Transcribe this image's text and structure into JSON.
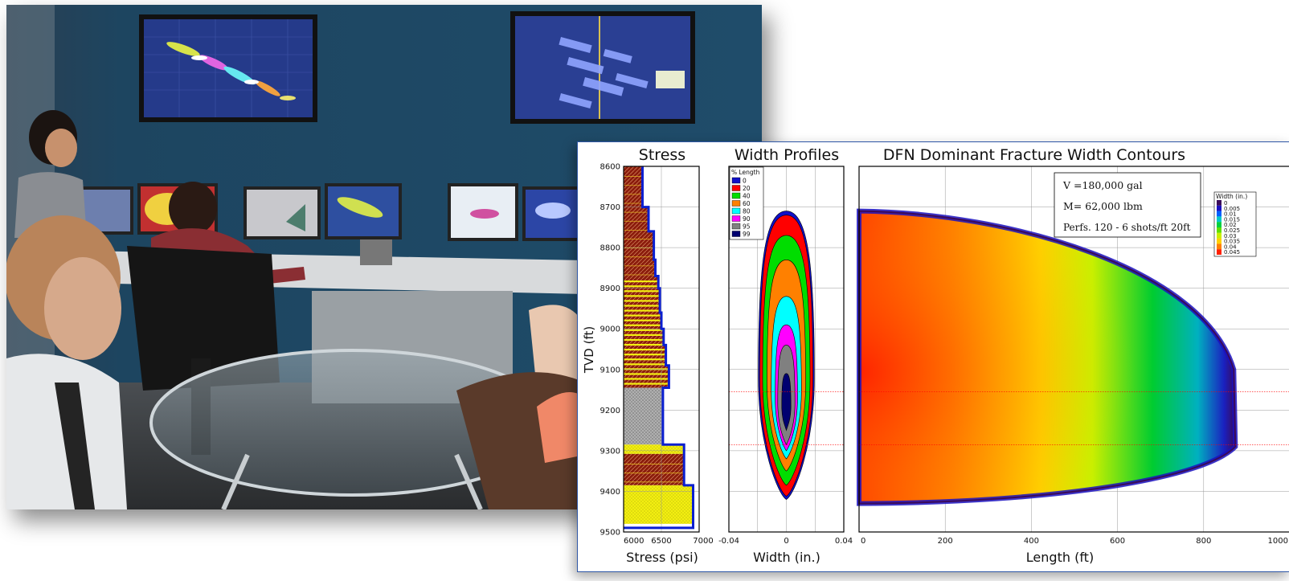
{
  "photo": {
    "title": ""
  },
  "colors": {
    "wall": "#1f4a66",
    "chart_border": "#2f57a6",
    "stress_line": "#0a1fd0",
    "shale_fill": "#8b1c0c",
    "sand_fill": "#f3ef11",
    "silt_fill": "#9a9a9a",
    "perf_line": "#ff0000"
  },
  "chart_data": [
    {
      "type": "area",
      "title": "Stress",
      "xlabel": "Stress (psi)",
      "ylabel": "TVD (ft)",
      "xlim": [
        6000,
        7000
      ],
      "ylim": [
        9500,
        8600
      ],
      "xticks": [
        "6000",
        "6500",
        "7000"
      ],
      "yticks": [
        "8600",
        "8700",
        "8800",
        "8900",
        "9000",
        "9100",
        "9200",
        "9300",
        "9400",
        "9500"
      ],
      "grid": true,
      "stress_profile": [
        {
          "depth": 8600,
          "stress": 6250
        },
        {
          "depth": 8700,
          "stress": 6250
        },
        {
          "depth": 8700,
          "stress": 6330
        },
        {
          "depth": 8760,
          "stress": 6330
        },
        {
          "depth": 8760,
          "stress": 6400
        },
        {
          "depth": 8830,
          "stress": 6400
        },
        {
          "depth": 8830,
          "stress": 6420
        },
        {
          "depth": 8870,
          "stress": 6420
        },
        {
          "depth": 8870,
          "stress": 6460
        },
        {
          "depth": 8900,
          "stress": 6460
        },
        {
          "depth": 8900,
          "stress": 6480
        },
        {
          "depth": 8960,
          "stress": 6480
        },
        {
          "depth": 8960,
          "stress": 6500
        },
        {
          "depth": 9000,
          "stress": 6500
        },
        {
          "depth": 9000,
          "stress": 6530
        },
        {
          "depth": 9040,
          "stress": 6530
        },
        {
          "depth": 9040,
          "stress": 6560
        },
        {
          "depth": 9090,
          "stress": 6560
        },
        {
          "depth": 9090,
          "stress": 6600
        },
        {
          "depth": 9145,
          "stress": 6600
        },
        {
          "depth": 9145,
          "stress": 6520
        },
        {
          "depth": 9285,
          "stress": 6520
        },
        {
          "depth": 9285,
          "stress": 6800
        },
        {
          "depth": 9385,
          "stress": 6800
        },
        {
          "depth": 9385,
          "stress": 6920
        },
        {
          "depth": 9490,
          "stress": 6920
        }
      ],
      "lithology": [
        {
          "top": 8600,
          "bottom": 8875,
          "rock": "shale"
        },
        {
          "top": 8875,
          "bottom": 9145,
          "rock": "interbedded"
        },
        {
          "top": 9145,
          "bottom": 9285,
          "rock": "siltstone"
        },
        {
          "top": 9285,
          "bottom": 9308,
          "rock": "sand"
        },
        {
          "top": 9308,
          "bottom": 9385,
          "rock": "shale"
        },
        {
          "top": 9385,
          "bottom": 9480,
          "rock": "sand"
        }
      ]
    },
    {
      "type": "area",
      "title": "Width Profiles",
      "xlabel": "Width (in.)",
      "xlim": [
        -0.04,
        0.04
      ],
      "xticks": [
        "-0.04",
        "0",
        "0.04"
      ],
      "legend_title": "% Length",
      "legend_position": "top-left",
      "series": [
        {
          "name": "0",
          "color": "#1010c8",
          "top": 8710,
          "bottom": 9420,
          "max_width": 0.0195
        },
        {
          "name": "20",
          "color": "#ff0000",
          "top": 8720,
          "bottom": 9412,
          "max_width": 0.0185
        },
        {
          "name": "40",
          "color": "#00dd00",
          "top": 8770,
          "bottom": 9385,
          "max_width": 0.0165
        },
        {
          "name": "60",
          "color": "#ff8000",
          "top": 8830,
          "bottom": 9350,
          "max_width": 0.0135
        },
        {
          "name": "80",
          "color": "#00ffff",
          "top": 8920,
          "bottom": 9320,
          "max_width": 0.0105
        },
        {
          "name": "90",
          "color": "#ff00ff",
          "top": 8990,
          "bottom": 9300,
          "max_width": 0.0078
        },
        {
          "name": "95",
          "color": "#808080",
          "top": 9040,
          "bottom": 9285,
          "max_width": 0.006
        },
        {
          "name": "99",
          "color": "#000070",
          "top": 9110,
          "bottom": 9250,
          "max_width": 0.0032
        }
      ]
    },
    {
      "type": "heatmap",
      "title": "DFN Dominant Fracture Width Contours",
      "xlabel": "Length (ft)",
      "xlim": [
        0,
        1000
      ],
      "xticks": [
        "0",
        "200",
        "400",
        "600",
        "800",
        "1000"
      ],
      "fracture_extent": {
        "top_at_wellbore": 8710,
        "bottom_at_wellbore": 9430,
        "tip_length": 870,
        "tip_top": 9100,
        "tip_bottom": 9290
      },
      "perforation_depths": [
        9155,
        9285
      ],
      "annotation": [
        "V =180,000 gal",
        "M= 62,000 lbm",
        "Perfs.  120 - 6 shots/ft 20ft"
      ],
      "colorbar_title": "Width (in.)",
      "colorbar": [
        {
          "label": "0",
          "color": "#3a0a5a"
        },
        {
          "label": "0.005",
          "color": "#1a10c0"
        },
        {
          "label": "0.01",
          "color": "#0060ff"
        },
        {
          "label": "0.015",
          "color": "#00c8c8"
        },
        {
          "label": "0.02",
          "color": "#00d040"
        },
        {
          "label": "0.025",
          "color": "#60e000"
        },
        {
          "label": "0.03",
          "color": "#c8f000"
        },
        {
          "label": "0.035",
          "color": "#ffd000"
        },
        {
          "label": "0.04",
          "color": "#ff8000"
        },
        {
          "label": "0.045",
          "color": "#ff2000"
        }
      ],
      "legend_position": "top-right"
    }
  ]
}
